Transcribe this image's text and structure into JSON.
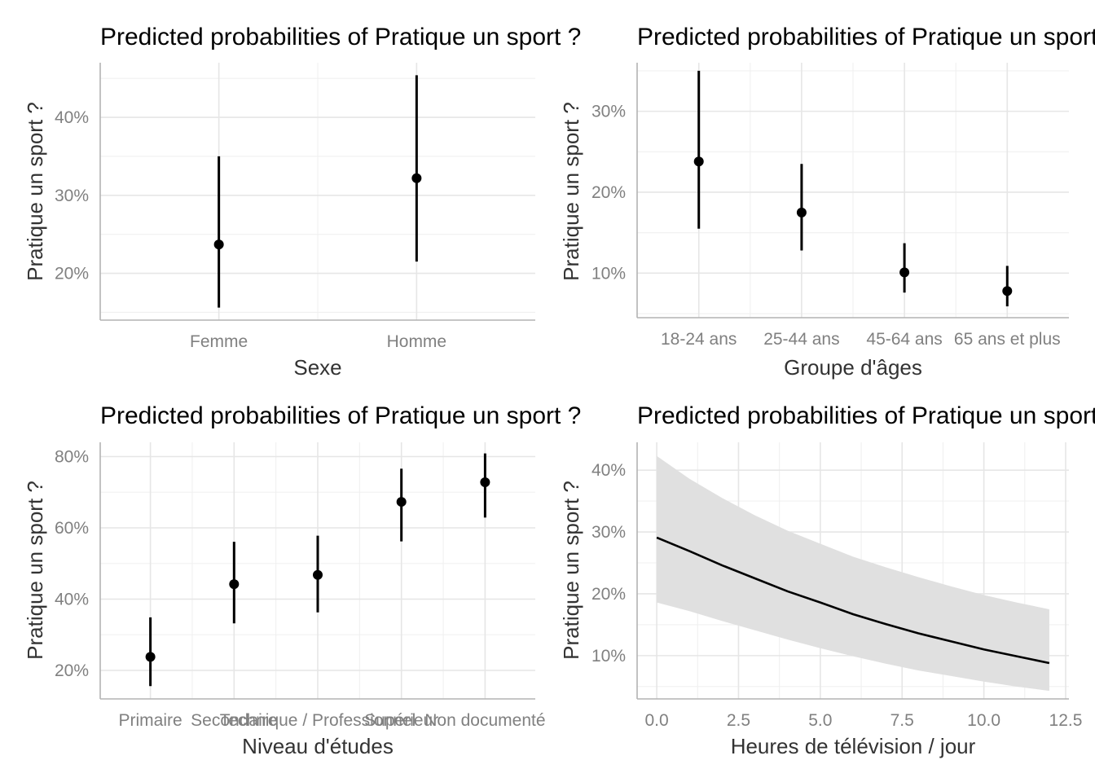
{
  "chart_data": [
    {
      "type": "pointrange",
      "title": "Predicted probabilities of Pratique un sport ?",
      "xlabel": "Sexe",
      "ylabel": "Pratique un sport ?",
      "categories": [
        "Femme",
        "Homme"
      ],
      "values": [
        23.7,
        32.2
      ],
      "lower": [
        15.6,
        21.5
      ],
      "upper": [
        35.0,
        45.4
      ],
      "ylim": [
        14.0,
        47.0
      ],
      "yticks": [
        20,
        30,
        40
      ],
      "ytick_labels": [
        "20%",
        "30%",
        "40%"
      ]
    },
    {
      "type": "pointrange",
      "title": "Predicted probabilities of Pratique un sport ?",
      "xlabel": "Groupe d'âges",
      "ylabel": "Pratique un sport ?",
      "categories": [
        "18-24 ans",
        "25-44 ans",
        "45-64 ans",
        "65 ans et plus"
      ],
      "values": [
        23.8,
        17.5,
        10.1,
        7.8
      ],
      "lower": [
        15.5,
        12.8,
        7.6,
        5.9
      ],
      "upper": [
        35.0,
        23.5,
        13.7,
        10.9
      ],
      "ylim": [
        4.5,
        36.0
      ],
      "yticks": [
        10,
        20,
        30
      ],
      "ytick_labels": [
        "10%",
        "20%",
        "30%"
      ]
    },
    {
      "type": "pointrange",
      "title": "Predicted probabilities of Pratique un sport ?",
      "xlabel": "Niveau d'études",
      "ylabel": "Pratique un sport ?",
      "categories": [
        "Primaire",
        "Secondaire",
        "Technique / Professionnel",
        "Supérieur",
        "Non documenté"
      ],
      "values": [
        23.8,
        44.2,
        46.8,
        67.3,
        72.8
      ],
      "lower": [
        15.6,
        33.2,
        36.3,
        56.2,
        62.9
      ],
      "upper": [
        34.9,
        56.1,
        57.8,
        76.6,
        80.9
      ],
      "ylim": [
        12.0,
        84.0
      ],
      "yticks": [
        20,
        40,
        60,
        80
      ],
      "ytick_labels": [
        "20%",
        "40%",
        "60%",
        "80%"
      ]
    },
    {
      "type": "line",
      "title": "Predicted probabilities of Pratique un sport ?",
      "xlabel": "Heures de télévision / jour",
      "ylabel": "Pratique un sport ?",
      "x": [
        0,
        1,
        2,
        3,
        4,
        5,
        6,
        7,
        8,
        9,
        10,
        11,
        12
      ],
      "y": [
        29.1,
        26.9,
        24.6,
        22.5,
        20.4,
        18.6,
        16.7,
        15.1,
        13.6,
        12.3,
        11.0,
        9.9,
        8.8
      ],
      "lower": [
        18.6,
        17.2,
        15.6,
        14.1,
        12.6,
        11.2,
        9.9,
        8.7,
        7.6,
        6.7,
        5.8,
        5.0,
        4.3
      ],
      "upper": [
        42.3,
        38.6,
        35.5,
        32.7,
        30.2,
        28.1,
        26.0,
        24.3,
        22.7,
        21.2,
        19.8,
        18.6,
        17.5
      ],
      "xlim": [
        -0.6,
        12.6
      ],
      "ylim": [
        3.0,
        44.5
      ],
      "xticks": [
        0,
        2.5,
        5,
        7.5,
        10,
        12.5
      ],
      "xtick_labels": [
        "0.0",
        "2.5",
        "5.0",
        "7.5",
        "10.0",
        "12.5"
      ],
      "yticks": [
        10,
        20,
        30,
        40
      ],
      "ytick_labels": [
        "10%",
        "20%",
        "30%",
        "40%"
      ]
    }
  ]
}
